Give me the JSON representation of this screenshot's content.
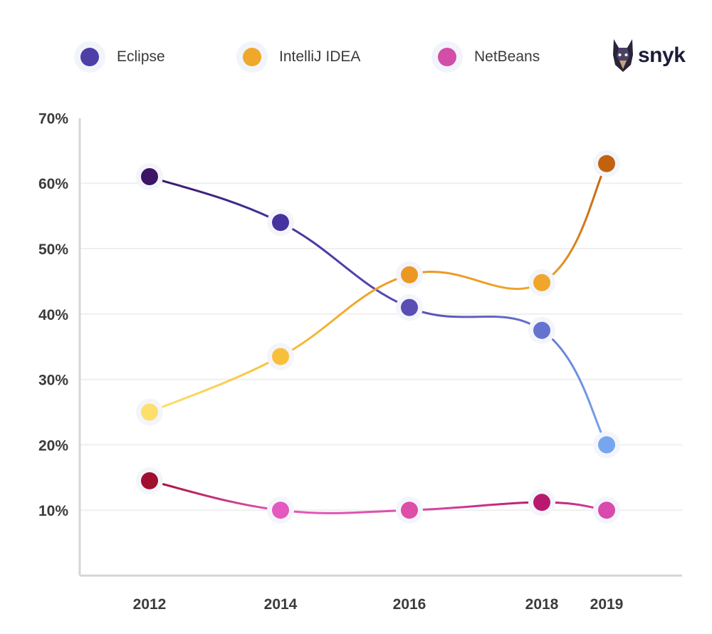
{
  "legend": [
    {
      "label": "Eclipse",
      "color": "#4e3fa6"
    },
    {
      "label": "IntelliJ IDEA",
      "color": "#efa72c"
    },
    {
      "label": "NetBeans",
      "color": "#d24ea8"
    }
  ],
  "brand": {
    "name": "snyk",
    "icon": "doberman-logo-icon"
  },
  "chart_data": {
    "type": "line",
    "title": "",
    "xlabel": "",
    "ylabel": "",
    "categories": [
      "2012",
      "2014",
      "2016",
      "2018",
      "2019"
    ],
    "x": [
      2012,
      2014,
      2016,
      2018,
      2019
    ],
    "ylim": [
      0,
      70
    ],
    "y_ticks": [
      "10%",
      "20%",
      "30%",
      "40%",
      "50%",
      "60%",
      "70%"
    ],
    "y_tick_values": [
      10,
      20,
      30,
      40,
      50,
      60,
      70
    ],
    "grid": true,
    "legend_position": "top",
    "series": [
      {
        "name": "Eclipse",
        "values": [
          61,
          54,
          41,
          37.5,
          20
        ],
        "point_colors": [
          "#3c1566",
          "#46339f",
          "#5a4db3",
          "#6573cf",
          "#78a6ee"
        ]
      },
      {
        "name": "IntelliJ IDEA",
        "values": [
          25,
          33.5,
          46,
          44.8,
          63
        ],
        "point_colors": [
          "#fddf6c",
          "#f8c03a",
          "#ea9723",
          "#f0a62b",
          "#c2620f"
        ]
      },
      {
        "name": "NetBeans",
        "values": [
          14.5,
          10,
          10,
          11.2,
          10
        ],
        "point_colors": [
          "#a10f2e",
          "#e458c0",
          "#dc4ea8",
          "#b8196f",
          "#d84aac"
        ]
      }
    ]
  }
}
